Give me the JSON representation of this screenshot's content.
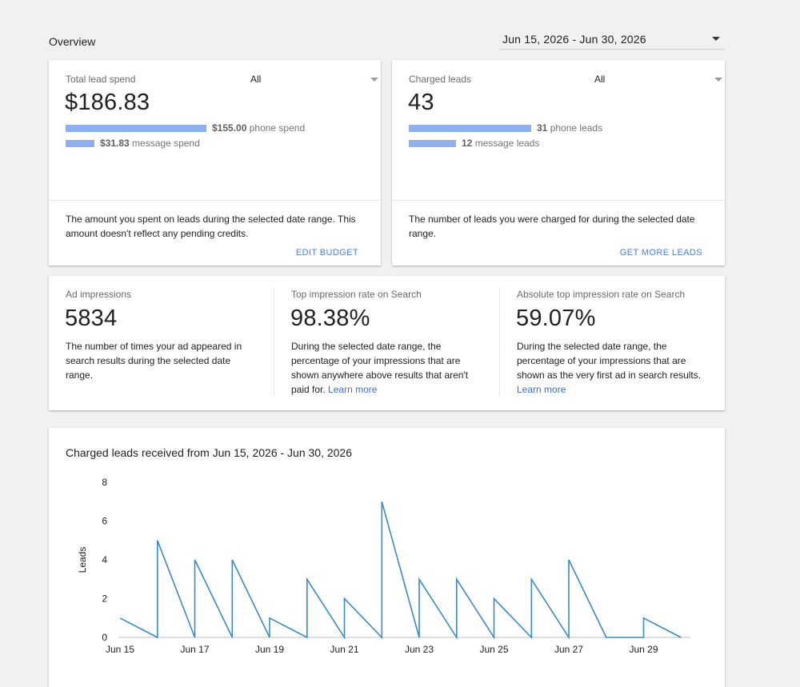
{
  "header": {
    "title": "Overview",
    "date_range": "Jun 15, 2026 - Jun 30, 2026"
  },
  "spend_card": {
    "label": "Total lead spend",
    "filter": "All",
    "value": "$186.83",
    "phone_amount": "$155.00",
    "phone_suffix": " phone spend",
    "phone_share": 0.83,
    "message_amount": "$31.83",
    "message_suffix": " message spend",
    "message_share": 0.17,
    "description": "The amount you spent on leads during the selected date range. This amount doesn't reflect any pending credits.",
    "action": "EDIT BUDGET"
  },
  "leads_card": {
    "label": "Charged leads",
    "filter": "All",
    "value": "43",
    "phone_amount": "31",
    "phone_suffix": " phone leads",
    "phone_share": 0.72,
    "message_amount": "12",
    "message_suffix": " message leads",
    "message_share": 0.28,
    "description": "The number of leads you were charged for during the selected date range.",
    "action": "GET MORE LEADS"
  },
  "metrics": [
    {
      "label": "Ad impressions",
      "value": "5834",
      "description": "The number of times your ad appeared in search results during the selected date range.",
      "link": ""
    },
    {
      "label": "Top impression rate on Search",
      "value": "98.38%",
      "description": "During the selected date range, the percentage of your impressions that are shown anywhere above results that aren't paid for.",
      "link": "Learn more"
    },
    {
      "label": "Absolute top impression rate on Search",
      "value": "59.07%",
      "description": "During the selected date range, the percentage of your impressions that are shown as the very first ad in search results.",
      "link": "Learn more"
    }
  ],
  "chart_data": {
    "type": "line",
    "title": "Charged leads received from Jun 15, 2026 - Jun 30, 2026",
    "ylabel": "Leads",
    "ylim": [
      0,
      8
    ],
    "yticks": [
      0,
      2,
      4,
      6,
      8
    ],
    "xticks": [
      "Jun 15",
      "Jun 17",
      "Jun 19",
      "Jun 21",
      "Jun 23",
      "Jun 25",
      "Jun 27",
      "Jun 29"
    ],
    "color": "#3b8ac2",
    "points": [
      [
        0,
        1
      ],
      [
        1,
        0
      ],
      [
        1,
        5
      ],
      [
        2,
        0
      ],
      [
        2,
        4
      ],
      [
        3,
        0
      ],
      [
        3,
        4
      ],
      [
        4,
        0
      ],
      [
        4,
        1
      ],
      [
        5,
        0
      ],
      [
        5,
        3
      ],
      [
        6,
        0
      ],
      [
        6,
        2
      ],
      [
        7,
        0
      ],
      [
        7,
        7
      ],
      [
        8,
        0
      ],
      [
        8,
        3
      ],
      [
        9,
        0
      ],
      [
        9,
        3
      ],
      [
        10,
        0
      ],
      [
        10,
        2
      ],
      [
        11,
        0
      ],
      [
        11,
        3
      ],
      [
        12,
        0
      ],
      [
        12,
        4
      ],
      [
        13,
        0
      ],
      [
        14,
        0
      ],
      [
        14,
        1
      ],
      [
        15,
        0
      ]
    ]
  }
}
